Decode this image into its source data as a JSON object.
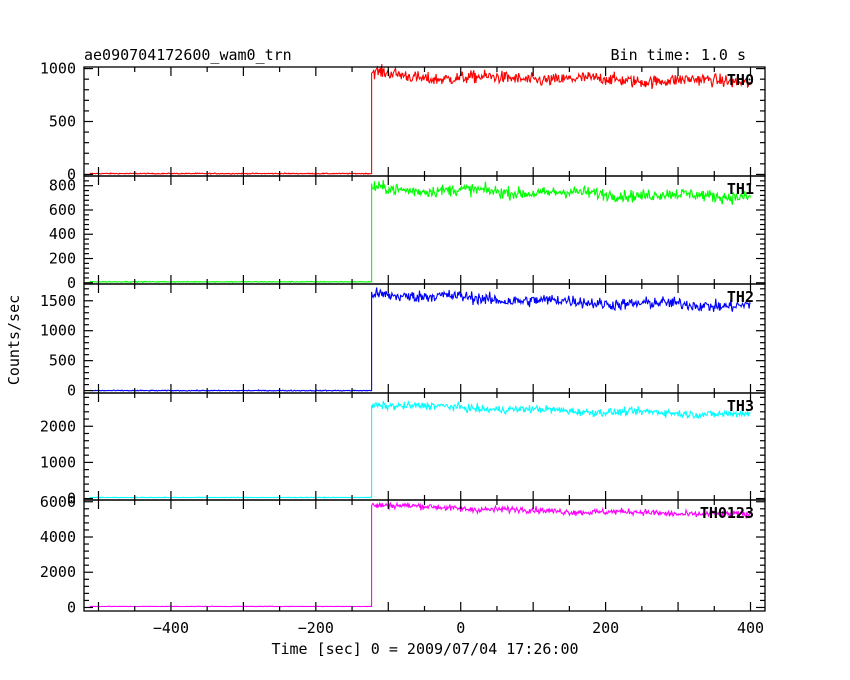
{
  "header": {
    "title": "ae090704172600_wam0_trn",
    "bin_time": "Bin time: 1.0 s"
  },
  "chart_data": {
    "type": "line",
    "xlabel": "Time [sec] 0 = 2009/07/04 17:26:00",
    "ylabel": "Counts/sec",
    "xlim": [
      -520,
      420
    ],
    "x_ticks": [
      -400,
      -200,
      0,
      200,
      400
    ],
    "trigger_time": -123,
    "series": [
      {
        "name": "TH0",
        "color": "#ff0000",
        "ylim": [
          -15,
          1015
        ],
        "y_ticks": [
          0,
          500,
          1000
        ],
        "baseline": 8,
        "segments": [
          [
            -123,
            960
          ],
          [
            -50,
            915
          ],
          [
            100,
            905
          ],
          [
            250,
            890
          ],
          [
            400,
            880
          ]
        ],
        "noise": 30
      },
      {
        "name": "TH1",
        "color": "#00ff00",
        "ylim": [
          -10,
          880
        ],
        "y_ticks": [
          0,
          200,
          400,
          600,
          800
        ],
        "baseline": 8,
        "segments": [
          [
            -123,
            780
          ],
          [
            -50,
            765
          ],
          [
            100,
            745
          ],
          [
            250,
            725
          ],
          [
            400,
            715
          ]
        ],
        "noise": 25
      },
      {
        "name": "TH2",
        "color": "#0000ff",
        "ylim": [
          -40,
          1780
        ],
        "y_ticks": [
          0,
          500,
          1000,
          1500
        ],
        "baseline": 0,
        "segments": [
          [
            -123,
            1620
          ],
          [
            -50,
            1580
          ],
          [
            100,
            1500
          ],
          [
            250,
            1450
          ],
          [
            400,
            1420
          ]
        ],
        "noise": 50
      },
      {
        "name": "TH3",
        "color": "#00ffff",
        "ylim": [
          -40,
          2920
        ],
        "y_ticks": [
          0,
          1000,
          2000
        ],
        "baseline": 30,
        "segments": [
          [
            -123,
            2600
          ],
          [
            -50,
            2550
          ],
          [
            100,
            2450
          ],
          [
            250,
            2380
          ],
          [
            400,
            2330
          ]
        ],
        "noise": 55
      },
      {
        "name": "TH0123",
        "color": "#ff00ff",
        "ylim": [
          -200,
          6100
        ],
        "y_ticks": [
          0,
          2000,
          4000,
          6000
        ],
        "baseline": 60,
        "segments": [
          [
            -123,
            5850
          ],
          [
            -50,
            5700
          ],
          [
            100,
            5500
          ],
          [
            250,
            5380
          ],
          [
            400,
            5250
          ]
        ],
        "noise": 90
      }
    ]
  }
}
